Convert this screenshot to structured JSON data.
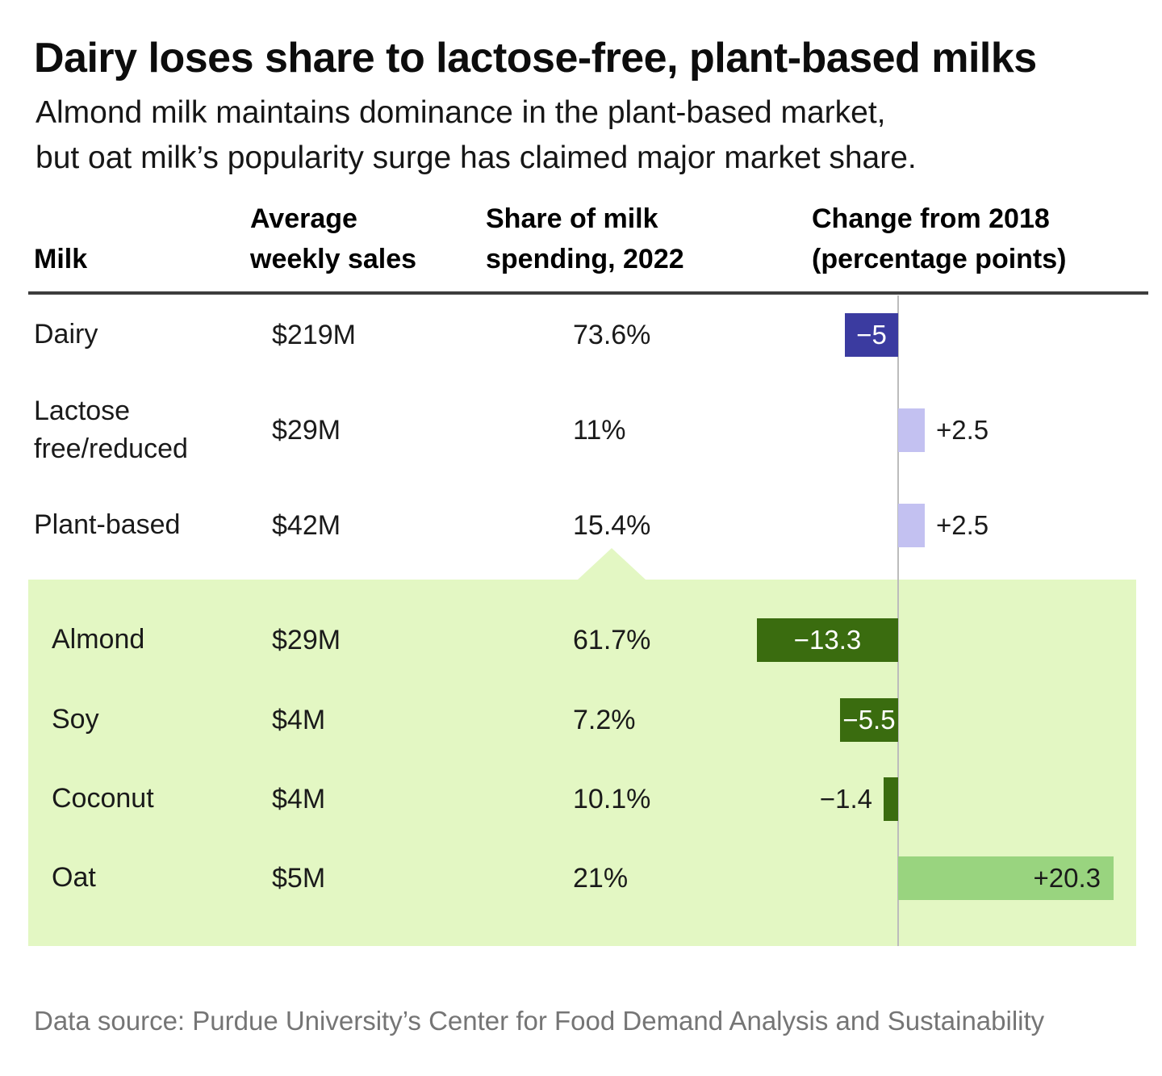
{
  "title": "Dairy loses share to lactose-free, plant-based milks",
  "subtitle": [
    "Almond milk maintains dominance in the plant-based market,",
    "but oat milk’s popularity surge has claimed major market share."
  ],
  "table": {
    "headers": {
      "milk": "Milk",
      "sales": [
        "Average",
        "weekly sales"
      ],
      "share": [
        "Share of milk",
        "spending, 2022"
      ],
      "change": [
        "Change from 2018",
        "(percentage points)"
      ]
    },
    "rows": [
      {
        "id": "dairy",
        "label": [
          "Dairy"
        ],
        "indent": false,
        "sales": "$219M",
        "share": "73.6%",
        "change": -5,
        "change_label": "−5",
        "bar_color": "#3b3ba0",
        "label_style": "inside-center",
        "label_color": "#ffffff"
      },
      {
        "id": "lactose",
        "label": [
          "Lactose",
          "free/reduced"
        ],
        "indent": false,
        "sales": "$29M",
        "share": "11%",
        "change": 2.5,
        "change_label": "+2.5",
        "bar_color": "#c3c1f1",
        "label_style": "outside-right",
        "label_color": "#1a1a1a"
      },
      {
        "id": "plant-based",
        "label": [
          "Plant-based"
        ],
        "indent": false,
        "sales": "$42M",
        "share": "15.4%",
        "change": 2.5,
        "change_label": "+2.5",
        "bar_color": "#c3c1f1",
        "label_style": "outside-right",
        "label_color": "#1a1a1a"
      },
      {
        "id": "almond",
        "label": [
          "Almond"
        ],
        "indent": true,
        "sales": "$29M",
        "share": "61.7%",
        "change": -13.3,
        "change_label": "−13.3",
        "bar_color": "#3a6c0f",
        "label_style": "inside-center",
        "label_color": "#ffffff"
      },
      {
        "id": "soy",
        "label": [
          "Soy"
        ],
        "indent": true,
        "sales": "$4M",
        "share": "7.2%",
        "change": -5.5,
        "change_label": "−5.5",
        "bar_color": "#3a6c0f",
        "label_style": "inside-center",
        "label_color": "#ffffff"
      },
      {
        "id": "coconut",
        "label": [
          "Coconut"
        ],
        "indent": true,
        "sales": "$4M",
        "share": "10.1%",
        "change": -1.4,
        "change_label": "−1.4",
        "bar_color": "#3a6c0f",
        "label_style": "outside-left",
        "label_color": "#1a1a1a"
      },
      {
        "id": "oat",
        "label": [
          "Oat"
        ],
        "indent": true,
        "sales": "$5M",
        "share": "21%",
        "change": 20.3,
        "change_label": "+20.3",
        "bar_color": "#99d47f",
        "label_style": "inside-right",
        "label_color": "#1a1a1a"
      }
    ]
  },
  "highlight_panel": {
    "color": "#e3f7c3",
    "applies_to": [
      "Almond",
      "Soy",
      "Coconut",
      "Oat"
    ],
    "points_at_row": "Plant-based"
  },
  "footer": "Data source: Purdue University’s Center for Food Demand Analysis and Sustainability",
  "colors": {
    "dairy_bar": "#3b3ba0",
    "positive_purple_bar": "#c3c1f1",
    "plant_negative_bar": "#3a6c0f",
    "oat_positive_bar": "#99d47f",
    "highlight_panel": "#e3f7c3",
    "axis_line": "#bcbcbc",
    "header_rule": "#3d3d3d",
    "footer_text": "#757575"
  },
  "chart_data": {
    "type": "table",
    "title": "Dairy loses share to lactose-free, plant-based milks",
    "subtitle": "Almond milk maintains dominance in the plant-based market, but oat milk’s popularity surge has claimed major market share.",
    "columns": [
      "Milk",
      "Average weekly sales",
      "Share of milk spending, 2022",
      "Change from 2018 (percentage points)"
    ],
    "rows": [
      {
        "milk": "Dairy",
        "avg_weekly_sales": "$219M",
        "share_2022_pct": 73.6,
        "change_from_2018_pts": -5,
        "group": "total"
      },
      {
        "milk": "Lactose free/reduced",
        "avg_weekly_sales": "$29M",
        "share_2022_pct": 11,
        "change_from_2018_pts": 2.5,
        "group": "total"
      },
      {
        "milk": "Plant-based",
        "avg_weekly_sales": "$42M",
        "share_2022_pct": 15.4,
        "change_from_2018_pts": 2.5,
        "group": "total"
      },
      {
        "milk": "Almond",
        "avg_weekly_sales": "$29M",
        "share_2022_pct": 61.7,
        "change_from_2018_pts": -13.3,
        "group": "plant-based"
      },
      {
        "milk": "Soy",
        "avg_weekly_sales": "$4M",
        "share_2022_pct": 7.2,
        "change_from_2018_pts": -5.5,
        "group": "plant-based"
      },
      {
        "milk": "Coconut",
        "avg_weekly_sales": "$4M",
        "share_2022_pct": 10.1,
        "change_from_2018_pts": -1.4,
        "group": "plant-based"
      },
      {
        "milk": "Oat",
        "avg_weekly_sales": "$5M",
        "share_2022_pct": 21,
        "change_from_2018_pts": 20.3,
        "group": "plant-based"
      }
    ],
    "embedded_bar_column": {
      "type": "bar",
      "orientation": "horizontal",
      "column": "change_from_2018_pts",
      "zero_axis": true,
      "value_range": [
        -13.3,
        20.3
      ]
    },
    "source": "Data source: Purdue University’s Center for Food Demand Analysis and Sustainability"
  }
}
